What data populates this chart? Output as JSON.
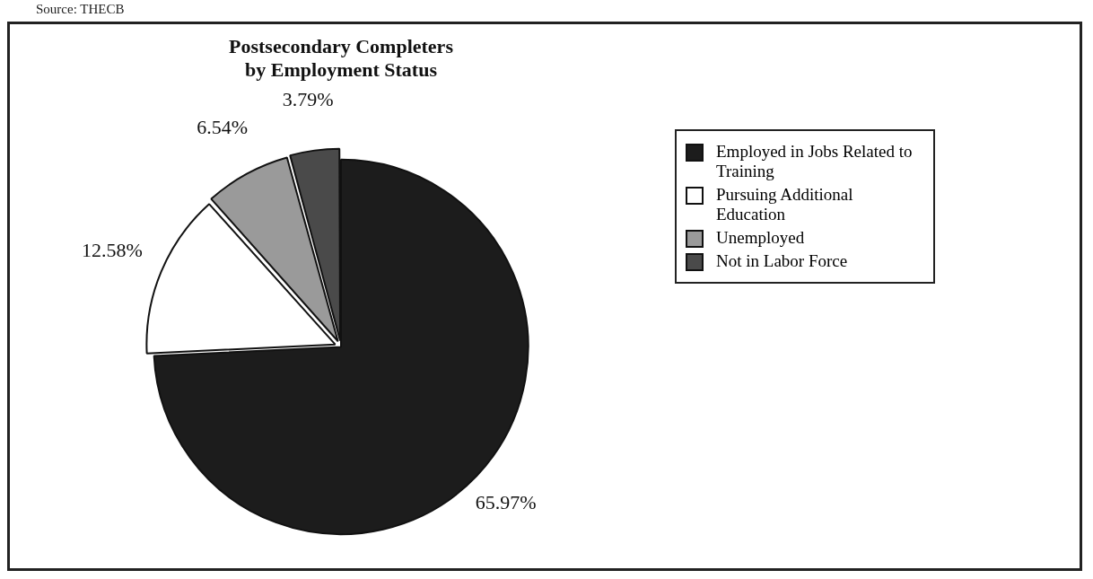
{
  "chart_data": {
    "type": "pie",
    "title": "Postsecondary Completers\nby Employment Status",
    "categories": [
      "Employed in Jobs Related to Training",
      "Pursuing Additional Education",
      "Unemployed",
      "Not in Labor Force"
    ],
    "values": [
      65.97,
      12.58,
      6.54,
      3.79
    ],
    "colors": [
      "#1c1c1c",
      "#ffffff",
      "#9a9a9a",
      "#4a4a4a"
    ],
    "value_labels": [
      "65.97%",
      "12.58%",
      "6.54%",
      "3.79%"
    ],
    "legend": "right",
    "annotations": [
      "Source: THECB"
    ]
  }
}
